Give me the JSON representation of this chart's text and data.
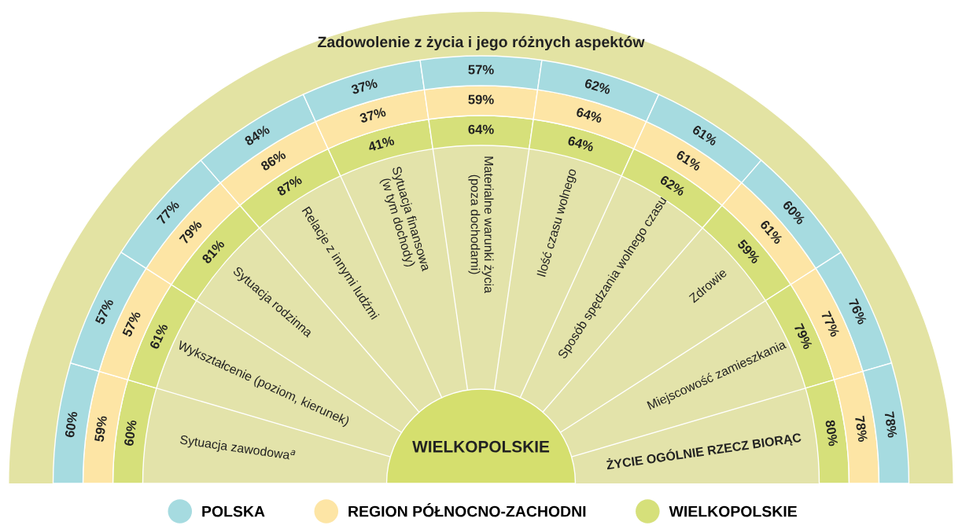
{
  "chart_data": {
    "type": "other",
    "title": "Zadowolenie z życia i jego różnych aspektów",
    "categories": [
      "Sytuacja zawodowa$^{a}$",
      "Wykształcenie (poziom, kierunek)",
      "Sytuacja rodzinna",
      "Relacje z innymi ludźmi",
      "Sytuacja finansowa\n(w tym dochody)",
      "Materialne warunki życia\n(poza dochodami)",
      "Ilość czasu wolnego",
      "Sposób spędzania wolnego czasu",
      "Zdrowie",
      "Miejscowość zamieszkania",
      "ŻYCIE OGÓLNIE RZECZ BIORĄC"
    ],
    "series": [
      {
        "name": "WIELKOPOLSKIE",
        "color": "#d6e07a",
        "values": [
          60,
          61,
          81,
          87,
          41,
          64,
          64,
          62,
          59,
          79,
          80
        ],
        "value_labels": [
          "60%",
          "61%",
          "81%",
          "87%",
          "41%",
          "64%",
          "64%",
          "62%",
          "59%",
          "79%",
          "80%"
        ]
      },
      {
        "name": "REGION PÓŁNOCNO-ZACHODNI",
        "color": "#fde5a5",
        "values": [
          59,
          57,
          79,
          86,
          37,
          59,
          64,
          61,
          61,
          77,
          78
        ],
        "value_labels": [
          "59%",
          "57%",
          "79%",
          "86%",
          "37%",
          "59%",
          "64%",
          "61%",
          "61%",
          "77%",
          "78%"
        ]
      },
      {
        "name": "POLSKA",
        "color": "#a6dbe0",
        "values": [
          60,
          57,
          77,
          84,
          37,
          57,
          62,
          61,
          60,
          76,
          78
        ],
        "value_labels": [
          "60%",
          "57%",
          "77%",
          "84%",
          "37%",
          "57%",
          "62%",
          "61%",
          "60%",
          "76%",
          "78%"
        ]
      }
    ],
    "annotations": [
      "WIELKOPOLSKIE"
    ],
    "legend": "bottom"
  }
}
